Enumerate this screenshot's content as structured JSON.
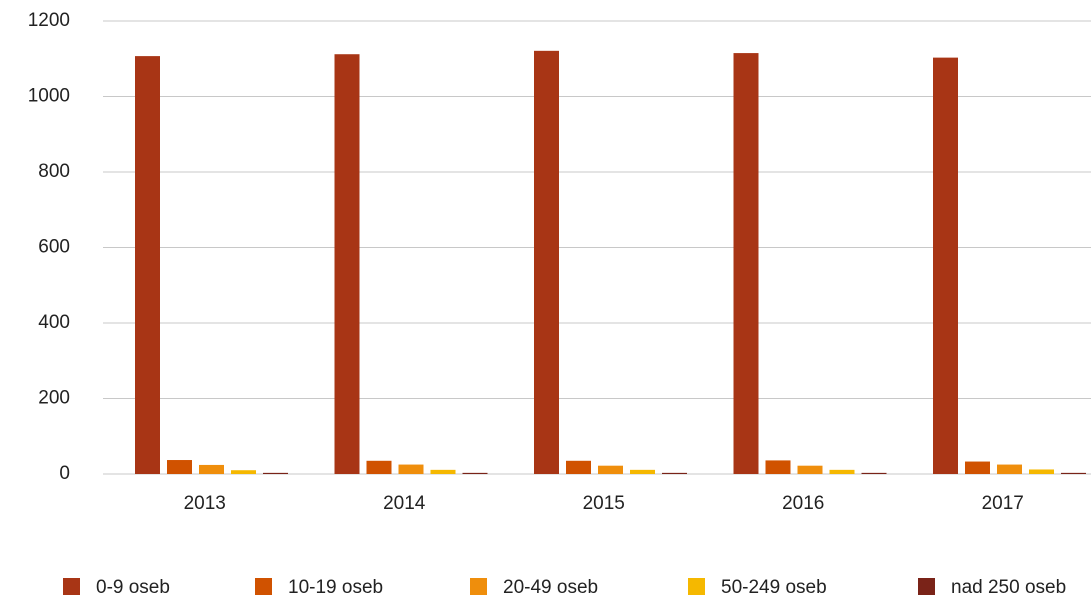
{
  "chart_data": {
    "type": "bar",
    "categories": [
      "2013",
      "2014",
      "2015",
      "2016",
      "2017"
    ],
    "series": [
      {
        "name": "0-9 oseb",
        "color": "#a83515",
        "values": [
          1107,
          1112,
          1121,
          1115,
          1103
        ]
      },
      {
        "name": "10-19 oseb",
        "color": "#d05200",
        "values": [
          37,
          35,
          35,
          36,
          33
        ]
      },
      {
        "name": "20-49 oseb",
        "color": "#ef8e0c",
        "values": [
          24,
          25,
          22,
          22,
          25
        ]
      },
      {
        "name": "50-249 oseb",
        "color": "#f5b800",
        "values": [
          10,
          11,
          11,
          11,
          12
        ]
      },
      {
        "name": "nad 250 oseb",
        "color": "#7a2318",
        "values": [
          3,
          3,
          3,
          3,
          3
        ]
      }
    ],
    "ylim": [
      0,
      1200
    ],
    "yticks": [
      0,
      200,
      400,
      600,
      800,
      1000,
      1200
    ],
    "grid": true,
    "legend": "bottom"
  }
}
